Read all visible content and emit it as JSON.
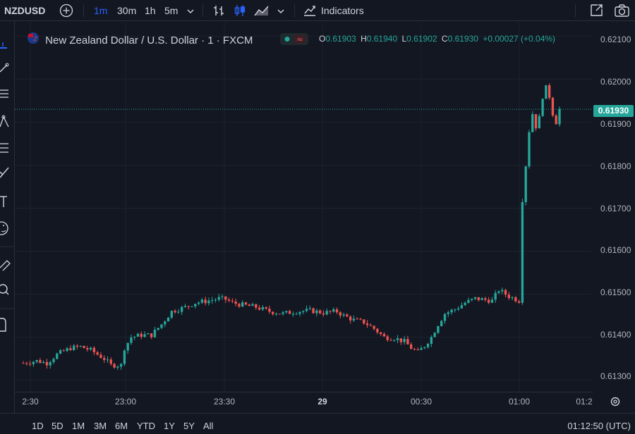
{
  "toolbar": {
    "symbol": "NZDUSD",
    "intervals": [
      "1m",
      "30m",
      "1h",
      "5m"
    ],
    "active_interval": "1m",
    "indicators_label": "Indicators"
  },
  "legend": {
    "title": "New Zealand Dollar / U.S. Dollar · 1 · FXCM",
    "o_label": "O",
    "o_value": "0.61903",
    "h_label": "H",
    "h_value": "0.61940",
    "l_label": "L",
    "l_value": "0.61902",
    "c_label": "C",
    "c_value": "0.61930",
    "change": "+0.00027 (+0.04%)",
    "up_color": "#26a69a",
    "down_color": "#ef5350"
  },
  "price_axis": {
    "ticks": [
      "0.62100",
      "0.62000",
      "0.61900",
      "0.61800",
      "0.61700",
      "0.61600",
      "0.61500",
      "0.61400",
      "0.61300"
    ],
    "last_price": "0.61930"
  },
  "time_axis": {
    "ticks": [
      "2:30",
      "23:00",
      "23:30",
      "29",
      "00:30",
      "01:00",
      "01:2"
    ]
  },
  "bottom": {
    "ranges": [
      "1D",
      "5D",
      "1M",
      "3M",
      "6M",
      "YTD",
      "1Y",
      "5Y",
      "All"
    ],
    "clock": "01:12:50 (UTC)"
  },
  "chart_data": {
    "type": "candlestick",
    "title": "New Zealand Dollar / U.S. Dollar · 1 · FXCM",
    "ylim": [
      0.6127,
      0.6213
    ],
    "x_ticks": [
      "2:30",
      "23:00",
      "23:30",
      "29",
      "00:30",
      "01:00",
      "01:2"
    ],
    "y_ticks": [
      0.621,
      0.62,
      0.619,
      0.618,
      0.617,
      0.616,
      0.615,
      0.614,
      0.613
    ],
    "last_price": 0.6193,
    "close_path": [
      [
        0,
        0.6134
      ],
      [
        4,
        0.61345
      ],
      [
        7,
        0.6134
      ],
      [
        10,
        0.6136
      ],
      [
        14,
        0.61375
      ],
      [
        17,
        0.61378
      ],
      [
        20,
        0.6137
      ],
      [
        24,
        0.6135
      ],
      [
        26,
        0.61335
      ],
      [
        29,
        0.61335
      ],
      [
        30,
        0.61375
      ],
      [
        32,
        0.614
      ],
      [
        35,
        0.61405
      ],
      [
        38,
        0.61405
      ],
      [
        41,
        0.6143
      ],
      [
        44,
        0.6146
      ],
      [
        48,
        0.6147
      ],
      [
        51,
        0.6148
      ],
      [
        55,
        0.61485
      ],
      [
        58,
        0.6149
      ],
      [
        60,
        0.61488
      ],
      [
        62,
        0.6148
      ],
      [
        65,
        0.61475
      ],
      [
        69,
        0.6147
      ],
      [
        73,
        0.6146
      ],
      [
        77,
        0.61455
      ],
      [
        81,
        0.6146
      ],
      [
        85,
        0.61462
      ],
      [
        89,
        0.61457
      ],
      [
        93,
        0.6146
      ],
      [
        95,
        0.6145
      ],
      [
        98,
        0.6144
      ],
      [
        101,
        0.61435
      ],
      [
        104,
        0.6142
      ],
      [
        107,
        0.614
      ],
      [
        110,
        0.61398
      ],
      [
        113,
        0.6139
      ],
      [
        115,
        0.61375
      ],
      [
        117,
        0.61365
      ],
      [
        119,
        0.6138
      ],
      [
        121,
        0.614
      ],
      [
        123,
        0.6143
      ],
      [
        125,
        0.61455
      ],
      [
        128,
        0.61465
      ],
      [
        131,
        0.6148
      ],
      [
        134,
        0.6149
      ],
      [
        137,
        0.61487
      ],
      [
        139,
        0.61485
      ],
      [
        141,
        0.6151
      ],
      [
        144,
        0.61495
      ],
      [
        147,
        0.61485
      ],
      [
        148,
        0.6172
      ],
      [
        149,
        0.618
      ],
      [
        150,
        0.6188
      ],
      [
        151,
        0.6192
      ],
      [
        152,
        0.6189
      ],
      [
        153,
        0.6191
      ],
      [
        154,
        0.6196
      ],
      [
        155,
        0.6198
      ],
      [
        156,
        0.6196
      ],
      [
        157,
        0.6192
      ],
      [
        158,
        0.619
      ],
      [
        159,
        0.6193
      ]
    ]
  }
}
